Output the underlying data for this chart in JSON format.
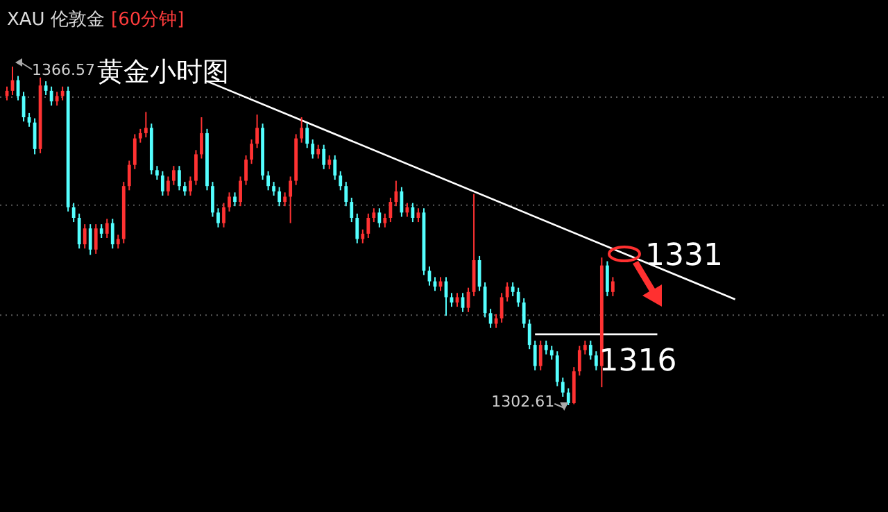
{
  "chart_data": {
    "type": "candlestick",
    "title": "XAU 伦敦金",
    "subtitle": "[60分钟]",
    "categories": [
      null,
      null,
      null,
      null,
      null,
      null,
      null,
      null,
      null,
      null,
      null,
      null,
      null,
      null,
      null,
      null,
      null,
      null,
      null,
      null,
      null,
      null,
      null,
      null,
      null,
      null,
      null,
      null,
      null,
      null,
      null,
      null,
      null,
      null,
      null,
      null,
      null,
      null,
      null,
      null,
      null,
      null,
      null,
      null,
      null,
      null,
      null,
      null,
      null,
      null,
      null,
      null,
      null,
      null,
      null,
      null,
      null,
      null,
      null,
      null,
      null,
      null,
      null,
      null,
      null,
      null,
      null,
      null,
      null,
      null,
      null,
      null,
      null,
      null,
      null,
      null,
      null,
      null,
      null,
      null,
      null,
      null,
      null,
      null,
      null,
      null,
      null,
      null,
      null,
      null,
      null,
      null,
      null,
      null,
      null,
      null,
      null,
      null,
      null,
      null,
      null,
      null,
      null,
      null,
      null,
      null,
      null,
      null,
      null,
      null,
      null,
      null,
      null,
      null,
      null,
      null,
      null,
      null,
      null,
      null,
      null,
      null,
      null,
      null,
      null,
      null,
      null,
      null,
      null,
      null,
      null,
      null
    ],
    "ohlc": [
      [
        1361,
        1362.8,
        1360.2,
        1362
      ],
      [
        1362,
        1366.57,
        1361.2,
        1364
      ],
      [
        1364,
        1364.8,
        1360.2,
        1361
      ],
      [
        1361,
        1361.8,
        1356.2,
        1357
      ],
      [
        1357,
        1357.8,
        1355.2,
        1356
      ],
      [
        1356,
        1356.8,
        1350,
        1351
      ],
      [
        1351,
        1364.5,
        1350.2,
        1363
      ],
      [
        1363,
        1363.8,
        1361.2,
        1362
      ],
      [
        1362,
        1362.8,
        1359.2,
        1360
      ],
      [
        1360,
        1361.8,
        1359.2,
        1361
      ],
      [
        1361,
        1362.8,
        1360.2,
        1362
      ],
      [
        1362,
        1362.8,
        1339.2,
        1340
      ],
      [
        1340,
        1340.8,
        1337.2,
        1338
      ],
      [
        1338,
        1338.8,
        1332.2,
        1333
      ],
      [
        1333,
        1336.8,
        1332.2,
        1336
      ],
      [
        1336,
        1336.8,
        1331,
        1332
      ],
      [
        1332,
        1336.8,
        1331.2,
        1336
      ],
      [
        1336,
        1336.8,
        1334.2,
        1335
      ],
      [
        1335,
        1337.8,
        1334.2,
        1337
      ],
      [
        1337,
        1337.8,
        1332.2,
        1333
      ],
      [
        1333,
        1334.8,
        1332.2,
        1334
      ],
      [
        1334,
        1344.8,
        1333.2,
        1344
      ],
      [
        1344,
        1348.8,
        1343.2,
        1348
      ],
      [
        1348,
        1353.8,
        1347.2,
        1353
      ],
      [
        1353,
        1354.8,
        1352.2,
        1354
      ],
      [
        1354,
        1358,
        1353.2,
        1355
      ],
      [
        1355,
        1355.8,
        1346.2,
        1347
      ],
      [
        1347,
        1347.8,
        1345.2,
        1346
      ],
      [
        1346,
        1346.8,
        1342.2,
        1343
      ],
      [
        1343,
        1345.8,
        1342.2,
        1345
      ],
      [
        1345,
        1347.8,
        1344.2,
        1347
      ],
      [
        1347,
        1347.8,
        1343.2,
        1344
      ],
      [
        1344,
        1344.8,
        1342.2,
        1343
      ],
      [
        1343,
        1345.8,
        1342.2,
        1345
      ],
      [
        1345,
        1350.8,
        1344.2,
        1350
      ],
      [
        1350,
        1357,
        1349.2,
        1354
      ],
      [
        1354,
        1354.8,
        1343.2,
        1344
      ],
      [
        1344,
        1344.8,
        1338.2,
        1339
      ],
      [
        1339,
        1339.8,
        1336.2,
        1337
      ],
      [
        1337,
        1340.8,
        1336.2,
        1340
      ],
      [
        1340,
        1342.8,
        1339.2,
        1342
      ],
      [
        1342,
        1342.8,
        1340.2,
        1341
      ],
      [
        1341,
        1345.8,
        1340.2,
        1345
      ],
      [
        1345,
        1349.8,
        1344.2,
        1349
      ],
      [
        1349,
        1352.8,
        1348.2,
        1352
      ],
      [
        1352,
        1357.5,
        1351.2,
        1355
      ],
      [
        1355,
        1355.8,
        1345.2,
        1346
      ],
      [
        1346,
        1346.8,
        1343.2,
        1344
      ],
      [
        1344,
        1344.8,
        1342.2,
        1343
      ],
      [
        1343,
        1343.8,
        1340.2,
        1341
      ],
      [
        1341,
        1342.8,
        1340.2,
        1342
      ],
      [
        1342,
        1345.8,
        1337,
        1345
      ],
      [
        1345,
        1353.8,
        1344.2,
        1353
      ],
      [
        1353,
        1357,
        1352.2,
        1355
      ],
      [
        1355,
        1355.8,
        1351.2,
        1352
      ],
      [
        1352,
        1352.8,
        1349.2,
        1350
      ],
      [
        1350,
        1351.8,
        1349.2,
        1351
      ],
      [
        1351,
        1351.8,
        1347.2,
        1348
      ],
      [
        1348,
        1349.8,
        1347.2,
        1349
      ],
      [
        1349,
        1349.8,
        1345.2,
        1346
      ],
      [
        1346,
        1346.8,
        1343.2,
        1344
      ],
      [
        1344,
        1344.8,
        1340.2,
        1341
      ],
      [
        1341,
        1341.8,
        1337.2,
        1338
      ],
      [
        1338,
        1338.8,
        1333.2,
        1334
      ],
      [
        1334,
        1335.8,
        1333.2,
        1335
      ],
      [
        1335,
        1338.8,
        1334.2,
        1338
      ],
      [
        1338,
        1339.8,
        1337.2,
        1339
      ],
      [
        1339,
        1339.8,
        1336.2,
        1337
      ],
      [
        1337,
        1338.8,
        1336.2,
        1338
      ],
      [
        1338,
        1341.8,
        1337.2,
        1341
      ],
      [
        1341,
        1345,
        1340.2,
        1343
      ],
      [
        1343,
        1343.8,
        1338.2,
        1339
      ],
      [
        1339,
        1340.8,
        1338.2,
        1340
      ],
      [
        1340,
        1340.8,
        1337.2,
        1338
      ],
      [
        1338,
        1339.8,
        1337.2,
        1339
      ],
      [
        1339,
        1339.8,
        1327.2,
        1328
      ],
      [
        1328,
        1328.8,
        1325.2,
        1326
      ],
      [
        1326,
        1326.8,
        1324.2,
        1325
      ],
      [
        1325,
        1326.8,
        1324.2,
        1326
      ],
      [
        1326,
        1326.8,
        1319.5,
        1323
      ],
      [
        1323,
        1323.8,
        1321.2,
        1322
      ],
      [
        1322,
        1323.8,
        1321.2,
        1323
      ],
      [
        1323,
        1323.8,
        1320.2,
        1321
      ],
      [
        1321,
        1324.8,
        1320.2,
        1324
      ],
      [
        1324,
        1342.5,
        1323.2,
        1330
      ],
      [
        1330,
        1330.8,
        1324.2,
        1325
      ],
      [
        1325,
        1325.8,
        1319.2,
        1320
      ],
      [
        1320,
        1320.8,
        1317.2,
        1318
      ],
      [
        1318,
        1319.8,
        1317.2,
        1319
      ],
      [
        1319,
        1323.8,
        1318.2,
        1323
      ],
      [
        1323,
        1325.8,
        1322.2,
        1325
      ],
      [
        1325,
        1325.8,
        1323.2,
        1324
      ],
      [
        1324,
        1324.8,
        1321.2,
        1322
      ],
      [
        1322,
        1322.8,
        1317.2,
        1318
      ],
      [
        1318,
        1318.8,
        1313.2,
        1314
      ],
      [
        1314,
        1314.8,
        1309.2,
        1310
      ],
      [
        1310,
        1314.8,
        1309.2,
        1314
      ],
      [
        1314,
        1314.8,
        1312.2,
        1313
      ],
      [
        1313,
        1313.8,
        1311.2,
        1312
      ],
      [
        1312,
        1312.8,
        1306.2,
        1307
      ],
      [
        1307,
        1307.8,
        1304.2,
        1305
      ],
      [
        1305,
        1305.8,
        1302.61,
        1303
      ],
      [
        1303,
        1309.8,
        1302.8,
        1309
      ],
      [
        1309,
        1313.8,
        1308.2,
        1313
      ],
      [
        1313,
        1314.8,
        1312.2,
        1314
      ],
      [
        1314,
        1314.8,
        1311.2,
        1312
      ],
      [
        1312,
        1312.8,
        1309.2,
        1310
      ],
      [
        1310,
        1330.5,
        1306,
        1329
      ],
      [
        1329,
        1329.8,
        1323.2,
        1324
      ],
      [
        1324,
        1326.8,
        1323.2,
        1326
      ],
      null,
      null,
      null,
      null,
      null,
      null,
      null,
      null,
      null,
      null,
      null,
      null,
      null,
      null,
      null,
      null,
      null,
      null,
      null,
      null,
      null,
      null
    ],
    "colors": [
      "#ff3232",
      "#ff3232",
      "#54ffff",
      "#54ffff",
      "#54ffff",
      "#54ffff",
      "#ff3232",
      "#54ffff",
      "#54ffff",
      "#ff3232",
      "#ff3232",
      "#54ffff",
      "#54ffff",
      "#54ffff",
      "#ff3232",
      "#54ffff",
      "#ff3232",
      "#54ffff",
      "#ff3232",
      "#54ffff",
      "#ff3232",
      "#ff3232",
      "#ff3232",
      "#ff3232",
      "#ff3232",
      "#ff3232",
      "#54ffff",
      "#54ffff",
      "#54ffff",
      "#ff3232",
      "#ff3232",
      "#54ffff",
      "#54ffff",
      "#ff3232",
      "#ff3232",
      "#ff3232",
      "#54ffff",
      "#54ffff",
      "#54ffff",
      "#ff3232",
      "#ff3232",
      "#54ffff",
      "#ff3232",
      "#ff3232",
      "#ff3232",
      "#ff3232",
      "#54ffff",
      "#54ffff",
      "#54ffff",
      "#54ffff",
      "#ff3232",
      "#ff3232",
      "#ff3232",
      "#ff3232",
      "#54ffff",
      "#54ffff",
      "#ff3232",
      "#54ffff",
      "#ff3232",
      "#54ffff",
      "#54ffff",
      "#54ffff",
      "#54ffff",
      "#54ffff",
      "#ff3232",
      "#ff3232",
      "#ff3232",
      "#54ffff",
      "#ff3232",
      "#ff3232",
      "#ff3232",
      "#54ffff",
      "#ff3232",
      "#54ffff",
      "#ff3232",
      "#54ffff",
      "#54ffff",
      "#54ffff",
      "#ff3232",
      "#54ffff",
      "#54ffff",
      "#ff3232",
      "#54ffff",
      "#ff3232",
      "#ff3232",
      "#54ffff",
      "#54ffff",
      "#54ffff",
      "#ff3232",
      "#ff3232",
      "#ff3232",
      "#54ffff",
      "#54ffff",
      "#54ffff",
      "#54ffff",
      "#54ffff",
      "#ff3232",
      "#54ffff",
      "#54ffff",
      "#54ffff",
      "#54ffff",
      "#54ffff",
      "#ff3232",
      "#ff3232",
      "#ff3232",
      "#54ffff",
      "#54ffff",
      "#ff3232",
      "#54ffff",
      "#ff3232",
      null,
      null,
      null,
      null,
      null,
      null,
      null,
      null,
      null,
      null,
      null,
      null,
      null,
      null,
      null,
      null,
      null,
      null,
      null,
      null,
      null,
      null
    ],
    "yticks": [
      {
        "value": 1360.8,
        "label": null
      },
      {
        "value": 1340.4,
        "label": null
      },
      {
        "value": 1319.6,
        "label": null
      }
    ],
    "grid": "y",
    "series": [
      {
        "type": "line",
        "color": "#ffffff",
        "values": [
          null,
          null,
          null,
          null,
          null,
          null,
          null,
          null,
          null,
          null,
          null,
          null,
          null,
          null,
          null,
          null,
          null,
          null,
          null,
          null,
          null,
          null,
          null,
          null,
          null,
          null,
          null,
          null,
          null,
          null,
          null,
          null,
          null,
          null,
          null,
          null,
          1363.8,
          null,
          null,
          null,
          null,
          null,
          null,
          null,
          null,
          null,
          null,
          null,
          null,
          null,
          null,
          null,
          null,
          null,
          null,
          null,
          null,
          null,
          null,
          null,
          null,
          null,
          null,
          null,
          null,
          null,
          null,
          null,
          null,
          null,
          null,
          null,
          null,
          null,
          null,
          null,
          null,
          null,
          null,
          null,
          null,
          null,
          null,
          null,
          null,
          null,
          null,
          null,
          null,
          null,
          null,
          null,
          null,
          null,
          null,
          null,
          null,
          null,
          null,
          null,
          null,
          null,
          null,
          null,
          null,
          null,
          null,
          null,
          null,
          null,
          null,
          null,
          null,
          null,
          null,
          null,
          null,
          null,
          null,
          null,
          null,
          null,
          null,
          null,
          null,
          null,
          null,
          null,
          null,
          null,
          null,
          1322.6
        ]
      },
      {
        "type": "line",
        "color": "#ffffff",
        "values": [
          null,
          null,
          null,
          null,
          null,
          null,
          null,
          null,
          null,
          null,
          null,
          null,
          null,
          null,
          null,
          null,
          null,
          null,
          null,
          null,
          null,
          null,
          null,
          null,
          null,
          null,
          null,
          null,
          null,
          null,
          null,
          null,
          null,
          null,
          null,
          null,
          null,
          null,
          null,
          null,
          null,
          null,
          null,
          null,
          null,
          null,
          null,
          null,
          null,
          null,
          null,
          null,
          null,
          null,
          null,
          null,
          null,
          null,
          null,
          null,
          null,
          null,
          null,
          null,
          null,
          null,
          null,
          null,
          null,
          null,
          null,
          null,
          null,
          null,
          null,
          null,
          null,
          null,
          null,
          null,
          null,
          null,
          null,
          null,
          null,
          null,
          null,
          null,
          null,
          null,
          null,
          null,
          null,
          null,
          null,
          1316,
          null,
          null,
          null,
          null,
          null,
          null,
          null,
          null,
          null,
          null,
          null,
          null,
          null,
          null,
          null,
          null,
          null,
          null,
          null,
          null,
          null,
          1316,
          null,
          null,
          null,
          null,
          null,
          null,
          null,
          null,
          null,
          null,
          null,
          null,
          null,
          null
        ]
      }
    ],
    "annotations": [
      "黄金小时图",
      "1366.57",
      "1302.61",
      "1331",
      {
        "text": "1316",
        "y": 1316
      }
    ]
  }
}
